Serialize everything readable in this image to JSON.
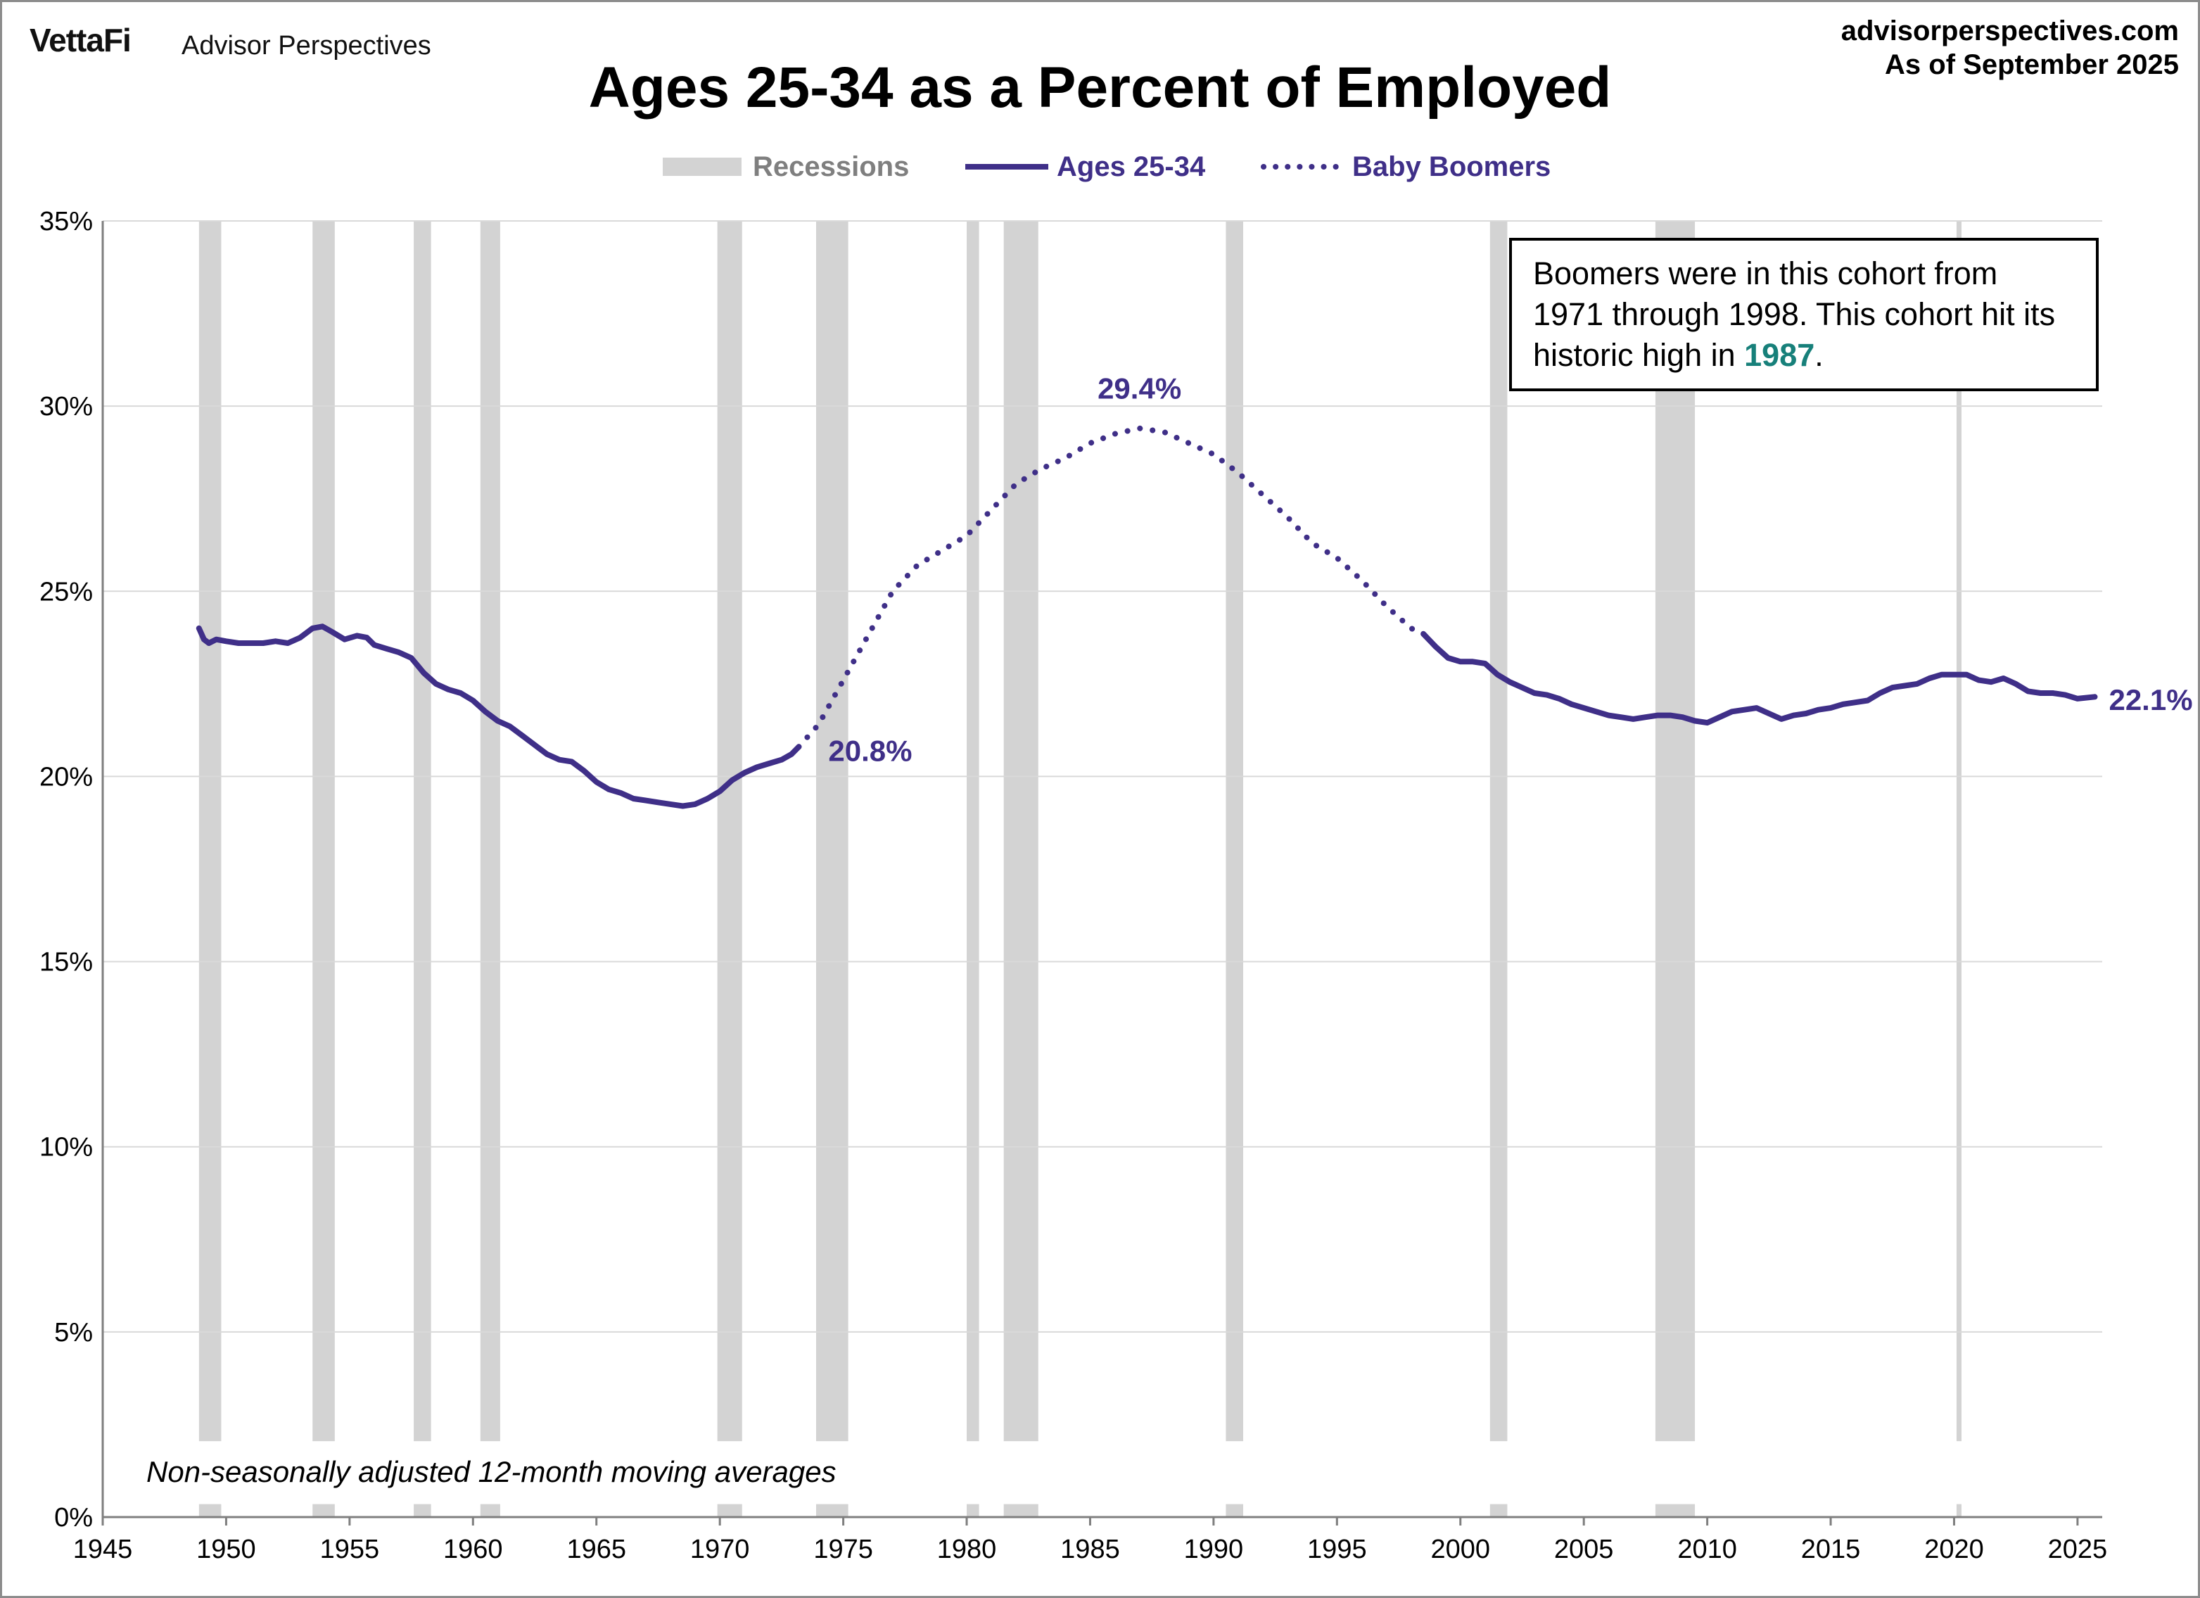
{
  "header": {
    "logo": "VettaFi",
    "logo_sub": "Advisor Perspectives",
    "site": "advisorperspectives.com",
    "asof": "As of September 2025"
  },
  "colors": {
    "series": "#3f2f88",
    "recession": "#d3d3d3",
    "grid": "#d9d9d9",
    "highlight": "#17807a"
  },
  "annotation": {
    "text_before": "Boomers were in this cohort from 1971 through 1998. This cohort hit its historic high in ",
    "highlight": "1987",
    "text_after": "."
  },
  "note": "Non-seasonally adjusted  12-month moving averages",
  "chart_data": {
    "type": "line",
    "title": "Ages 25-34 as a Percent of Employed",
    "xlim": [
      1945,
      2026
    ],
    "ylim": [
      0,
      35
    ],
    "x_ticks": [
      "1945",
      "1950",
      "1955",
      "1960",
      "1965",
      "1970",
      "1975",
      "1980",
      "1985",
      "1990",
      "1995",
      "2000",
      "2005",
      "2010",
      "2015",
      "2020",
      "2025"
    ],
    "y_ticks": [
      "0%",
      "5%",
      "10%",
      "15%",
      "20%",
      "25%",
      "30%",
      "35%"
    ],
    "grid": "horizontal",
    "legend_position": "top-center",
    "legend": [
      "Recessions",
      "Ages 25-34",
      "Baby Boomers"
    ],
    "recessions": [
      [
        1948.9,
        1949.8
      ],
      [
        1953.5,
        1954.4
      ],
      [
        1957.6,
        1958.3
      ],
      [
        1960.3,
        1961.1
      ],
      [
        1969.9,
        1970.9
      ],
      [
        1973.9,
        1975.2
      ],
      [
        1980.0,
        1980.5
      ],
      [
        1981.5,
        1982.9
      ],
      [
        1990.5,
        1991.2
      ],
      [
        2001.2,
        2001.9
      ],
      [
        2007.9,
        2009.5
      ],
      [
        2020.1,
        2020.3
      ]
    ],
    "series": [
      {
        "name": "Ages 25-34",
        "style": "solid",
        "segments": [
          [
            [
              1948.9,
              24.0
            ],
            [
              1949.1,
              23.7
            ],
            [
              1949.3,
              23.6
            ],
            [
              1949.6,
              23.7
            ],
            [
              1950.0,
              23.65
            ],
            [
              1950.5,
              23.6
            ],
            [
              1951.0,
              23.6
            ],
            [
              1951.5,
              23.6
            ],
            [
              1952.0,
              23.65
            ],
            [
              1952.5,
              23.6
            ],
            [
              1953.0,
              23.75
            ],
            [
              1953.5,
              24.0
            ],
            [
              1953.9,
              24.05
            ],
            [
              1954.3,
              23.9
            ],
            [
              1954.8,
              23.7
            ],
            [
              1955.3,
              23.8
            ],
            [
              1955.7,
              23.75
            ],
            [
              1956.0,
              23.55
            ],
            [
              1956.5,
              23.45
            ],
            [
              1957.0,
              23.35
            ],
            [
              1957.5,
              23.2
            ],
            [
              1958.0,
              22.8
            ],
            [
              1958.5,
              22.5
            ],
            [
              1959.0,
              22.35
            ],
            [
              1959.5,
              22.25
            ],
            [
              1960.0,
              22.05
            ],
            [
              1960.5,
              21.75
            ],
            [
              1961.0,
              21.5
            ],
            [
              1961.5,
              21.35
            ],
            [
              1962.0,
              21.1
            ],
            [
              1962.5,
              20.85
            ],
            [
              1963.0,
              20.6
            ],
            [
              1963.5,
              20.45
            ],
            [
              1964.0,
              20.4
            ],
            [
              1964.5,
              20.15
            ],
            [
              1965.0,
              19.85
            ],
            [
              1965.5,
              19.65
            ],
            [
              1966.0,
              19.55
            ],
            [
              1966.5,
              19.4
            ],
            [
              1967.0,
              19.35
            ],
            [
              1967.5,
              19.3
            ],
            [
              1968.0,
              19.25
            ],
            [
              1968.5,
              19.2
            ],
            [
              1969.0,
              19.25
            ],
            [
              1969.5,
              19.4
            ],
            [
              1970.0,
              19.6
            ],
            [
              1970.5,
              19.9
            ],
            [
              1971.0,
              20.1
            ],
            [
              1971.5,
              20.25
            ],
            [
              1972.0,
              20.35
            ],
            [
              1972.5,
              20.45
            ],
            [
              1972.9,
              20.6
            ],
            [
              1973.2,
              20.8
            ]
          ],
          [
            [
              1998.5,
              23.85
            ],
            [
              1999.0,
              23.5
            ],
            [
              1999.5,
              23.2
            ],
            [
              2000.0,
              23.1
            ],
            [
              2000.5,
              23.1
            ],
            [
              2001.0,
              23.05
            ],
            [
              2001.5,
              22.75
            ],
            [
              2002.0,
              22.55
            ],
            [
              2002.5,
              22.4
            ],
            [
              2003.0,
              22.25
            ],
            [
              2003.5,
              22.2
            ],
            [
              2004.0,
              22.1
            ],
            [
              2004.5,
              21.95
            ],
            [
              2005.0,
              21.85
            ],
            [
              2005.5,
              21.75
            ],
            [
              2006.0,
              21.65
            ],
            [
              2006.5,
              21.6
            ],
            [
              2007.0,
              21.55
            ],
            [
              2007.5,
              21.6
            ],
            [
              2008.0,
              21.65
            ],
            [
              2008.5,
              21.65
            ],
            [
              2009.0,
              21.6
            ],
            [
              2009.5,
              21.5
            ],
            [
              2010.0,
              21.45
            ],
            [
              2010.5,
              21.6
            ],
            [
              2011.0,
              21.75
            ],
            [
              2011.5,
              21.8
            ],
            [
              2012.0,
              21.85
            ],
            [
              2012.5,
              21.7
            ],
            [
              2013.0,
              21.55
            ],
            [
              2013.5,
              21.65
            ],
            [
              2014.0,
              21.7
            ],
            [
              2014.5,
              21.8
            ],
            [
              2015.0,
              21.85
            ],
            [
              2015.5,
              21.95
            ],
            [
              2016.0,
              22.0
            ],
            [
              2016.5,
              22.05
            ],
            [
              2017.0,
              22.25
            ],
            [
              2017.5,
              22.4
            ],
            [
              2018.0,
              22.45
            ],
            [
              2018.5,
              22.5
            ],
            [
              2019.0,
              22.65
            ],
            [
              2019.5,
              22.75
            ],
            [
              2020.0,
              22.75
            ],
            [
              2020.5,
              22.75
            ],
            [
              2021.0,
              22.6
            ],
            [
              2021.5,
              22.55
            ],
            [
              2022.0,
              22.65
            ],
            [
              2022.5,
              22.5
            ],
            [
              2023.0,
              22.3
            ],
            [
              2023.5,
              22.25
            ],
            [
              2024.0,
              22.25
            ],
            [
              2024.5,
              22.2
            ],
            [
              2025.0,
              22.1
            ],
            [
              2025.7,
              22.15
            ]
          ]
        ]
      },
      {
        "name": "Baby Boomers",
        "style": "dotted",
        "segments": [
          [
            [
              1973.2,
              20.8
            ],
            [
              1974.0,
              21.4
            ],
            [
              1975.0,
              22.6
            ],
            [
              1976.0,
              23.8
            ],
            [
              1977.0,
              25.0
            ],
            [
              1978.0,
              25.7
            ],
            [
              1979.0,
              26.1
            ],
            [
              1980.0,
              26.5
            ],
            [
              1981.0,
              27.2
            ],
            [
              1982.0,
              27.9
            ],
            [
              1983.0,
              28.3
            ],
            [
              1984.0,
              28.6
            ],
            [
              1985.0,
              29.0
            ],
            [
              1986.0,
              29.25
            ],
            [
              1987.0,
              29.4
            ],
            [
              1988.0,
              29.3
            ],
            [
              1989.0,
              29.0
            ],
            [
              1990.0,
              28.7
            ],
            [
              1991.0,
              28.2
            ],
            [
              1992.0,
              27.6
            ],
            [
              1993.0,
              27.0
            ],
            [
              1994.0,
              26.3
            ],
            [
              1995.0,
              25.9
            ],
            [
              1996.0,
              25.3
            ],
            [
              1997.0,
              24.6
            ],
            [
              1998.0,
              24.0
            ],
            [
              1998.5,
              23.85
            ]
          ]
        ]
      }
    ],
    "data_labels": [
      {
        "text": "20.8%",
        "x": 1973.2,
        "y": 20.8
      },
      {
        "text": "29.4%",
        "x": 1987.0,
        "y": 29.4
      },
      {
        "text": "22.1%",
        "x": 2025.7,
        "y": 22.1
      }
    ]
  }
}
